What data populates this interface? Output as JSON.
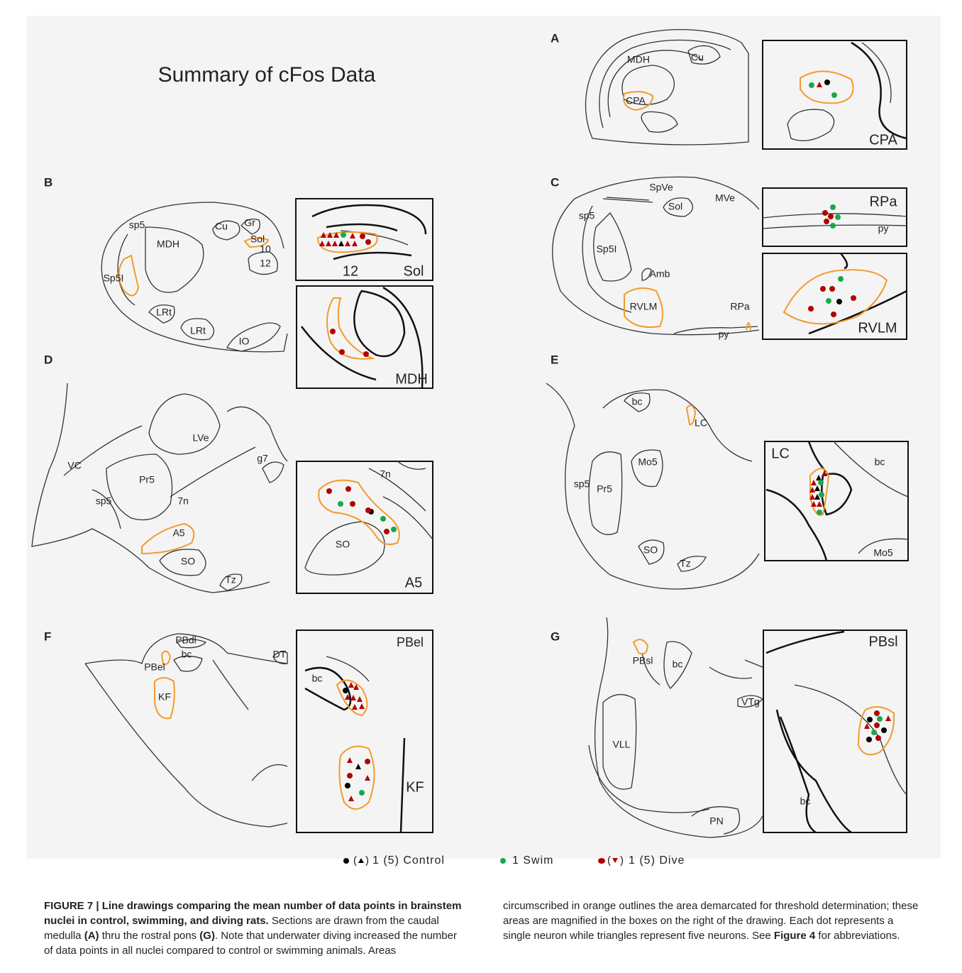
{
  "figure": {
    "title": "Summary of cFos Data",
    "panels": [
      {
        "letter": "A",
        "labels": [
          "MDH",
          "Cu",
          "CPA"
        ],
        "inset_labels": [
          "CPA"
        ]
      },
      {
        "letter": "B",
        "labels": [
          "sp5",
          "MDH",
          "Cu",
          "Gr",
          "Sol",
          "10",
          "12",
          "Sp5I",
          "LRt",
          "LRt",
          "IO"
        ],
        "inset_labels": [
          "12",
          "Sol",
          "MDH"
        ]
      },
      {
        "letter": "C",
        "labels": [
          "SpVe",
          "MVe",
          "sp5",
          "Sol",
          "Sp5I",
          "Amb",
          "RVLM",
          "RPa",
          "py"
        ],
        "inset_labels": [
          "RPa",
          "py",
          "RVLM"
        ]
      },
      {
        "letter": "D",
        "labels": [
          "LVe",
          "VC",
          "g7",
          "Pr5",
          "sp5",
          "7n",
          "A5",
          "SO",
          "Tz"
        ],
        "inset_labels": [
          "7n",
          "SO",
          "A5"
        ]
      },
      {
        "letter": "E",
        "labels": [
          "bc",
          "LC",
          "Mo5",
          "sp5",
          "Pr5",
          "SO",
          "Tz"
        ],
        "inset_labels": [
          "LC",
          "bc",
          "Mo5"
        ]
      },
      {
        "letter": "F",
        "labels": [
          "PBdl",
          "bc",
          "PBel",
          "DT",
          "KF"
        ],
        "inset_labels": [
          "PBel",
          "bc",
          "KF"
        ]
      },
      {
        "letter": "G",
        "labels": [
          "PBsl",
          "bc",
          "VTg",
          "VLL",
          "PN"
        ],
        "inset_labels": [
          "PBsl",
          "bc"
        ]
      }
    ],
    "legend": [
      "1 (5) Control",
      "1 Swim",
      "1 (5) Dive"
    ]
  },
  "caption": {
    "segments": [
      {
        "text": "FIGURE 7 | Line drawings comparing the mean number of data points in brainstem nuclei in control, swimming, and diving rats.",
        "bold": true
      },
      {
        "text": " Sections are drawn from the caudal medulla ",
        "bold": false
      },
      {
        "text": "(A)",
        "bold": true
      },
      {
        "text": " thru the rostral pons ",
        "bold": false
      },
      {
        "text": "(G)",
        "bold": true
      },
      {
        "text": ". Note that underwater diving increased the number of data points in all nuclei compared to control or swimming animals. Areas circumscribed in orange outlines the area demarcated for threshold determination; these areas are magnified in the boxes on the right of the drawing. Each dot represents a single neuron while triangles represent five neurons. See ",
        "bold": false
      },
      {
        "text": "Figure 4",
        "bold": true
      },
      {
        "text": " for abbreviations.",
        "bold": false
      }
    ]
  }
}
